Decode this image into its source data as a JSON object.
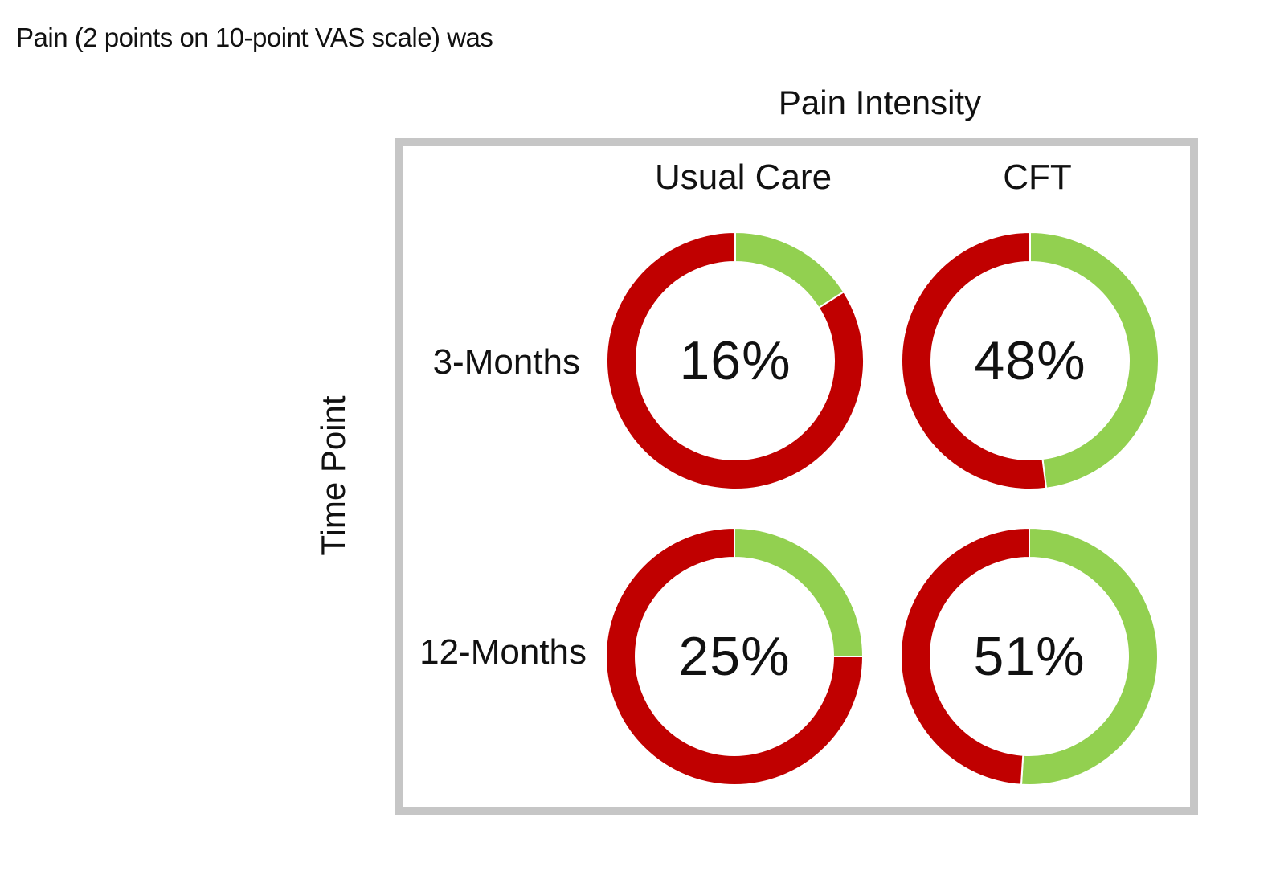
{
  "intro_text": "Pain (2 points on 10-point VAS scale) was",
  "chart_data": {
    "type": "pie",
    "style": "donut-grid",
    "title": "Pain Intensity",
    "ylabel": "Time Point",
    "columns": [
      "Usual Care",
      "CFT"
    ],
    "rows": [
      "3-Months",
      "12-Months"
    ],
    "colors": {
      "highlight": "#92d050",
      "remainder": "#c00000",
      "frame": "#c6c6c6"
    },
    "cells": [
      {
        "row": "3-Months",
        "column": "Usual Care",
        "value": 16,
        "label": "16%"
      },
      {
        "row": "3-Months",
        "column": "CFT",
        "value": 48,
        "label": "48%"
      },
      {
        "row": "12-Months",
        "column": "Usual Care",
        "value": 25,
        "label": "25%"
      },
      {
        "row": "12-Months",
        "column": "CFT",
        "value": 51,
        "label": "51%"
      }
    ]
  }
}
